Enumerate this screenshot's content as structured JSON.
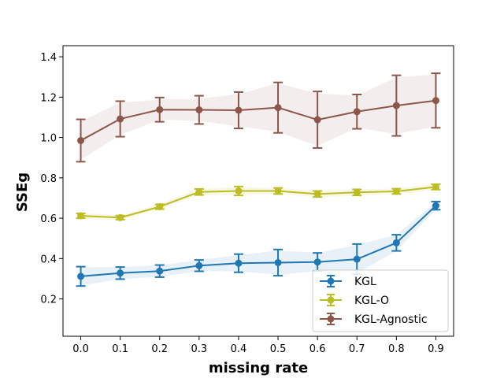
{
  "chart_data": {
    "type": "line",
    "title": "",
    "xlabel": "missing rate",
    "ylabel": "SSEg",
    "x": [
      0.0,
      0.1,
      0.2,
      0.3,
      0.4,
      0.5,
      0.6,
      0.7,
      0.8,
      0.9
    ],
    "x_tick_labels": [
      "0.0",
      "0.1",
      "0.2",
      "0.3",
      "0.4",
      "0.5",
      "0.6",
      "0.7",
      "0.8",
      "0.9"
    ],
    "y_ticks": [
      0.2,
      0.4,
      0.6,
      0.8,
      1.0,
      1.2,
      1.4
    ],
    "y_tick_labels": [
      "0.2",
      "0.4",
      "0.6",
      "0.8",
      "1.0",
      "1.2",
      "1.4"
    ],
    "xlim": [
      -0.045,
      0.945
    ],
    "ylim": [
      0.015,
      1.455
    ],
    "grid": false,
    "legend_position": "lower-right",
    "series": [
      {
        "name": "KGL",
        "color": "#1f77b4",
        "values": [
          0.312,
          0.328,
          0.338,
          0.365,
          0.377,
          0.38,
          0.383,
          0.397,
          0.478,
          0.662
        ],
        "error": [
          0.048,
          0.03,
          0.03,
          0.028,
          0.045,
          0.065,
          0.045,
          0.075,
          0.04,
          0.02
        ],
        "band": [
          0.045,
          0.03,
          0.028,
          0.028,
          0.04,
          0.06,
          0.045,
          0.07,
          0.04,
          0.02
        ]
      },
      {
        "name": "KGL-O",
        "color": "#bcbd22",
        "values": [
          0.612,
          0.603,
          0.657,
          0.73,
          0.735,
          0.735,
          0.72,
          0.728,
          0.733,
          0.755
        ],
        "error": [
          0.012,
          0.01,
          0.012,
          0.015,
          0.022,
          0.015,
          0.015,
          0.015,
          0.013,
          0.013
        ],
        "band": [
          0.014,
          0.012,
          0.014,
          0.016,
          0.02,
          0.015,
          0.016,
          0.016,
          0.014,
          0.014
        ]
      },
      {
        "name": "KGL-Agnostic",
        "color": "#8c564b",
        "values": [
          0.985,
          1.092,
          1.138,
          1.137,
          1.135,
          1.148,
          1.088,
          1.128,
          1.158,
          1.183
        ],
        "error": [
          0.105,
          0.088,
          0.06,
          0.07,
          0.09,
          0.125,
          0.14,
          0.085,
          0.15,
          0.135
        ],
        "band": [
          0.095,
          0.08,
          0.05,
          0.055,
          0.08,
          0.12,
          0.13,
          0.08,
          0.14,
          0.13
        ]
      }
    ]
  }
}
